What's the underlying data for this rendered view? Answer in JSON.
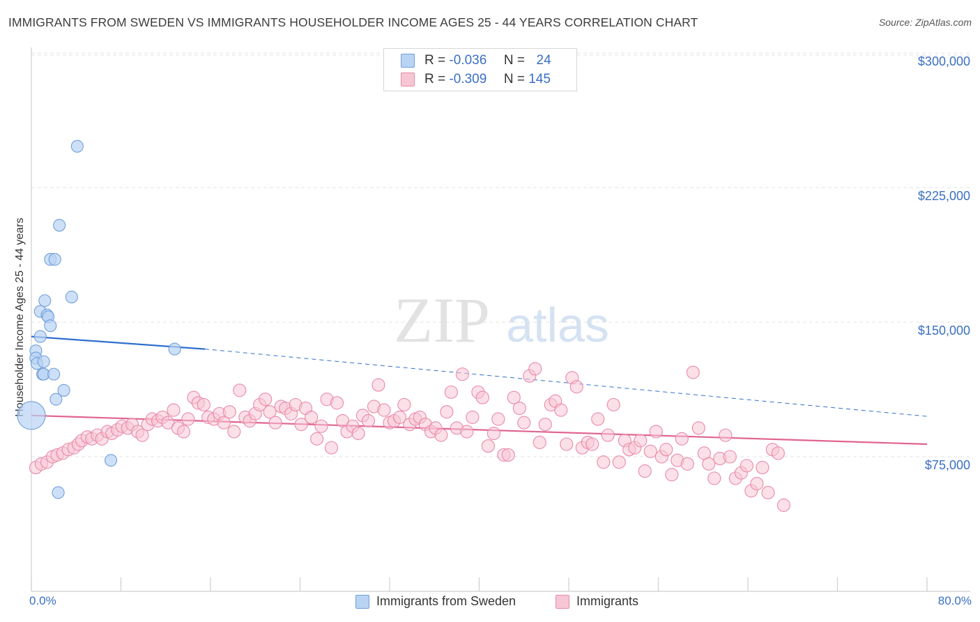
{
  "title": "IMMIGRANTS FROM SWEDEN VS IMMIGRANTS HOUSEHOLDER INCOME AGES 25 - 44 YEARS CORRELATION CHART",
  "source": "Source: ZipAtlas.com",
  "watermark": {
    "zip": "ZIP",
    "atlas": "atlas"
  },
  "colors": {
    "blue_fill": "#b9d3f3",
    "blue_stroke": "#6f9fdc",
    "blue_line": "#2f6fcf",
    "pink_fill": "#f7c6d5",
    "pink_stroke": "#e889a9",
    "pink_line": "#e0638f",
    "axis_text": "#3a6fc4",
    "grid": "#e3e3e3"
  },
  "legend": {
    "rows": [
      {
        "r_label": "R =",
        "r_value": "-0.036",
        "n_label": "N =",
        "n_value": "24"
      },
      {
        "r_label": "R =",
        "r_value": "-0.309",
        "n_label": "N =",
        "n_value": "145"
      }
    ]
  },
  "chart_data": {
    "type": "scatter",
    "xlabel": "",
    "ylabel": "Householder Income Ages 25 - 44 years",
    "x_tick_labels": [
      "0.0%",
      "80.0%"
    ],
    "y_tick_labels": [
      "$75,000",
      "$150,000",
      "$225,000",
      "$300,000"
    ],
    "y_ticks": [
      75000,
      150000,
      225000,
      300000
    ],
    "xlim": [
      0,
      80
    ],
    "ylim": [
      0,
      307000
    ],
    "grid": true,
    "legend_position": "bottom",
    "series": [
      {
        "name": "Immigrants from Sweden",
        "color": "blue",
        "points": [
          [
            0,
            98000
          ],
          [
            0.4,
            134000
          ],
          [
            0.4,
            130000
          ],
          [
            0.5,
            127000
          ],
          [
            0.8,
            156000
          ],
          [
            0.8,
            142000
          ],
          [
            1.0,
            121000
          ],
          [
            1.1,
            128000
          ],
          [
            1.1,
            121000
          ],
          [
            1.2,
            162000
          ],
          [
            1.4,
            154000
          ],
          [
            1.5,
            153000
          ],
          [
            1.7,
            148000
          ],
          [
            1.7,
            185000
          ],
          [
            2.0,
            121000
          ],
          [
            2.1,
            185000
          ],
          [
            2.2,
            107000
          ],
          [
            2.4,
            55000
          ],
          [
            2.5,
            204000
          ],
          [
            2.9,
            112000
          ],
          [
            3.6,
            164000
          ],
          [
            4.1,
            248000
          ],
          [
            7.1,
            73000
          ],
          [
            12.8,
            135000
          ]
        ],
        "trend": {
          "x": [
            0,
            15.5
          ],
          "y": [
            142000,
            135000
          ],
          "dashed_to_x": 80,
          "dashed_to_y": 97500
        }
      },
      {
        "name": "Immigrants",
        "color": "pink",
        "points": [
          [
            0.4,
            69000
          ],
          [
            0.9,
            71000
          ],
          [
            1.4,
            72000
          ],
          [
            1.9,
            75000
          ],
          [
            2.3,
            76000
          ],
          [
            2.8,
            77000
          ],
          [
            3.3,
            79000
          ],
          [
            3.8,
            80000
          ],
          [
            4.2,
            82000
          ],
          [
            4.5,
            84000
          ],
          [
            5.0,
            86000
          ],
          [
            5.4,
            85000
          ],
          [
            5.9,
            87000
          ],
          [
            6.3,
            85000
          ],
          [
            6.8,
            89000
          ],
          [
            7.2,
            88000
          ],
          [
            7.7,
            90000
          ],
          [
            8.1,
            92000
          ],
          [
            8.6,
            91000
          ],
          [
            9.0,
            93000
          ],
          [
            9.5,
            89000
          ],
          [
            9.9,
            87000
          ],
          [
            10.4,
            93000
          ],
          [
            10.8,
            96000
          ],
          [
            11.3,
            95000
          ],
          [
            11.7,
            97000
          ],
          [
            12.2,
            94000
          ],
          [
            12.7,
            101000
          ],
          [
            13.1,
            91000
          ],
          [
            13.6,
            89000
          ],
          [
            14.0,
            96000
          ],
          [
            14.5,
            108000
          ],
          [
            14.9,
            105000
          ],
          [
            15.4,
            104000
          ],
          [
            15.8,
            97000
          ],
          [
            16.3,
            96000
          ],
          [
            16.8,
            99000
          ],
          [
            17.2,
            94000
          ],
          [
            17.7,
            100000
          ],
          [
            18.1,
            89000
          ],
          [
            18.6,
            112000
          ],
          [
            19.1,
            97000
          ],
          [
            19.5,
            95000
          ],
          [
            20.0,
            99000
          ],
          [
            20.4,
            104000
          ],
          [
            20.9,
            107000
          ],
          [
            21.3,
            100000
          ],
          [
            21.8,
            94000
          ],
          [
            22.3,
            103000
          ],
          [
            22.7,
            102000
          ],
          [
            23.2,
            99000
          ],
          [
            23.6,
            104000
          ],
          [
            24.1,
            93000
          ],
          [
            24.5,
            102000
          ],
          [
            25.0,
            97000
          ],
          [
            25.5,
            85000
          ],
          [
            25.9,
            92000
          ],
          [
            26.4,
            107000
          ],
          [
            26.8,
            80000
          ],
          [
            27.3,
            105000
          ],
          [
            27.8,
            95000
          ],
          [
            28.2,
            89000
          ],
          [
            28.7,
            92000
          ],
          [
            29.2,
            88000
          ],
          [
            29.6,
            98000
          ],
          [
            30.1,
            95000
          ],
          [
            30.6,
            103000
          ],
          [
            31.0,
            115000
          ],
          [
            31.5,
            101000
          ],
          [
            32.0,
            94000
          ],
          [
            32.4,
            95000
          ],
          [
            32.9,
            97000
          ],
          [
            33.3,
            104000
          ],
          [
            33.8,
            93000
          ],
          [
            34.3,
            96000
          ],
          [
            34.7,
            97000
          ],
          [
            35.2,
            93000
          ],
          [
            35.7,
            89000
          ],
          [
            36.1,
            91000
          ],
          [
            36.6,
            87000
          ],
          [
            37.1,
            100000
          ],
          [
            37.5,
            111000
          ],
          [
            38.0,
            91000
          ],
          [
            38.5,
            121000
          ],
          [
            38.9,
            89000
          ],
          [
            39.4,
            97000
          ],
          [
            39.9,
            111000
          ],
          [
            40.3,
            108000
          ],
          [
            40.8,
            81000
          ],
          [
            41.3,
            88000
          ],
          [
            41.7,
            96000
          ],
          [
            42.2,
            76000
          ],
          [
            42.6,
            76000
          ],
          [
            43.1,
            108000
          ],
          [
            43.6,
            102000
          ],
          [
            44.0,
            94000
          ],
          [
            44.5,
            120000
          ],
          [
            45.0,
            124000
          ],
          [
            45.4,
            83000
          ],
          [
            45.9,
            93000
          ],
          [
            46.4,
            104000
          ],
          [
            46.8,
            106000
          ],
          [
            47.3,
            101000
          ],
          [
            47.8,
            82000
          ],
          [
            48.3,
            119000
          ],
          [
            48.7,
            114000
          ],
          [
            49.2,
            80000
          ],
          [
            49.7,
            83000
          ],
          [
            50.1,
            82000
          ],
          [
            50.6,
            96000
          ],
          [
            51.1,
            72000
          ],
          [
            51.5,
            87000
          ],
          [
            52.0,
            104000
          ],
          [
            52.5,
            72000
          ],
          [
            53.0,
            84000
          ],
          [
            53.4,
            79000
          ],
          [
            53.9,
            80000
          ],
          [
            54.4,
            84000
          ],
          [
            54.8,
            67000
          ],
          [
            55.3,
            78000
          ],
          [
            55.8,
            89000
          ],
          [
            56.3,
            75000
          ],
          [
            56.7,
            79000
          ],
          [
            57.2,
            65000
          ],
          [
            57.7,
            73000
          ],
          [
            58.1,
            85000
          ],
          [
            58.6,
            71000
          ],
          [
            59.1,
            122000
          ],
          [
            59.6,
            91000
          ],
          [
            60.1,
            77000
          ],
          [
            60.5,
            71000
          ],
          [
            61.0,
            63000
          ],
          [
            61.5,
            74000
          ],
          [
            62.0,
            87000
          ],
          [
            62.4,
            75000
          ],
          [
            62.9,
            63000
          ],
          [
            63.4,
            66000
          ],
          [
            63.9,
            70000
          ],
          [
            64.3,
            56000
          ],
          [
            64.8,
            60000
          ],
          [
            65.3,
            69000
          ],
          [
            65.8,
            55000
          ],
          [
            66.2,
            79000
          ],
          [
            66.7,
            77000
          ],
          [
            67.2,
            48000
          ]
        ],
        "trend": {
          "x": [
            0,
            80
          ],
          "y": [
            98000,
            82000
          ]
        }
      }
    ]
  }
}
